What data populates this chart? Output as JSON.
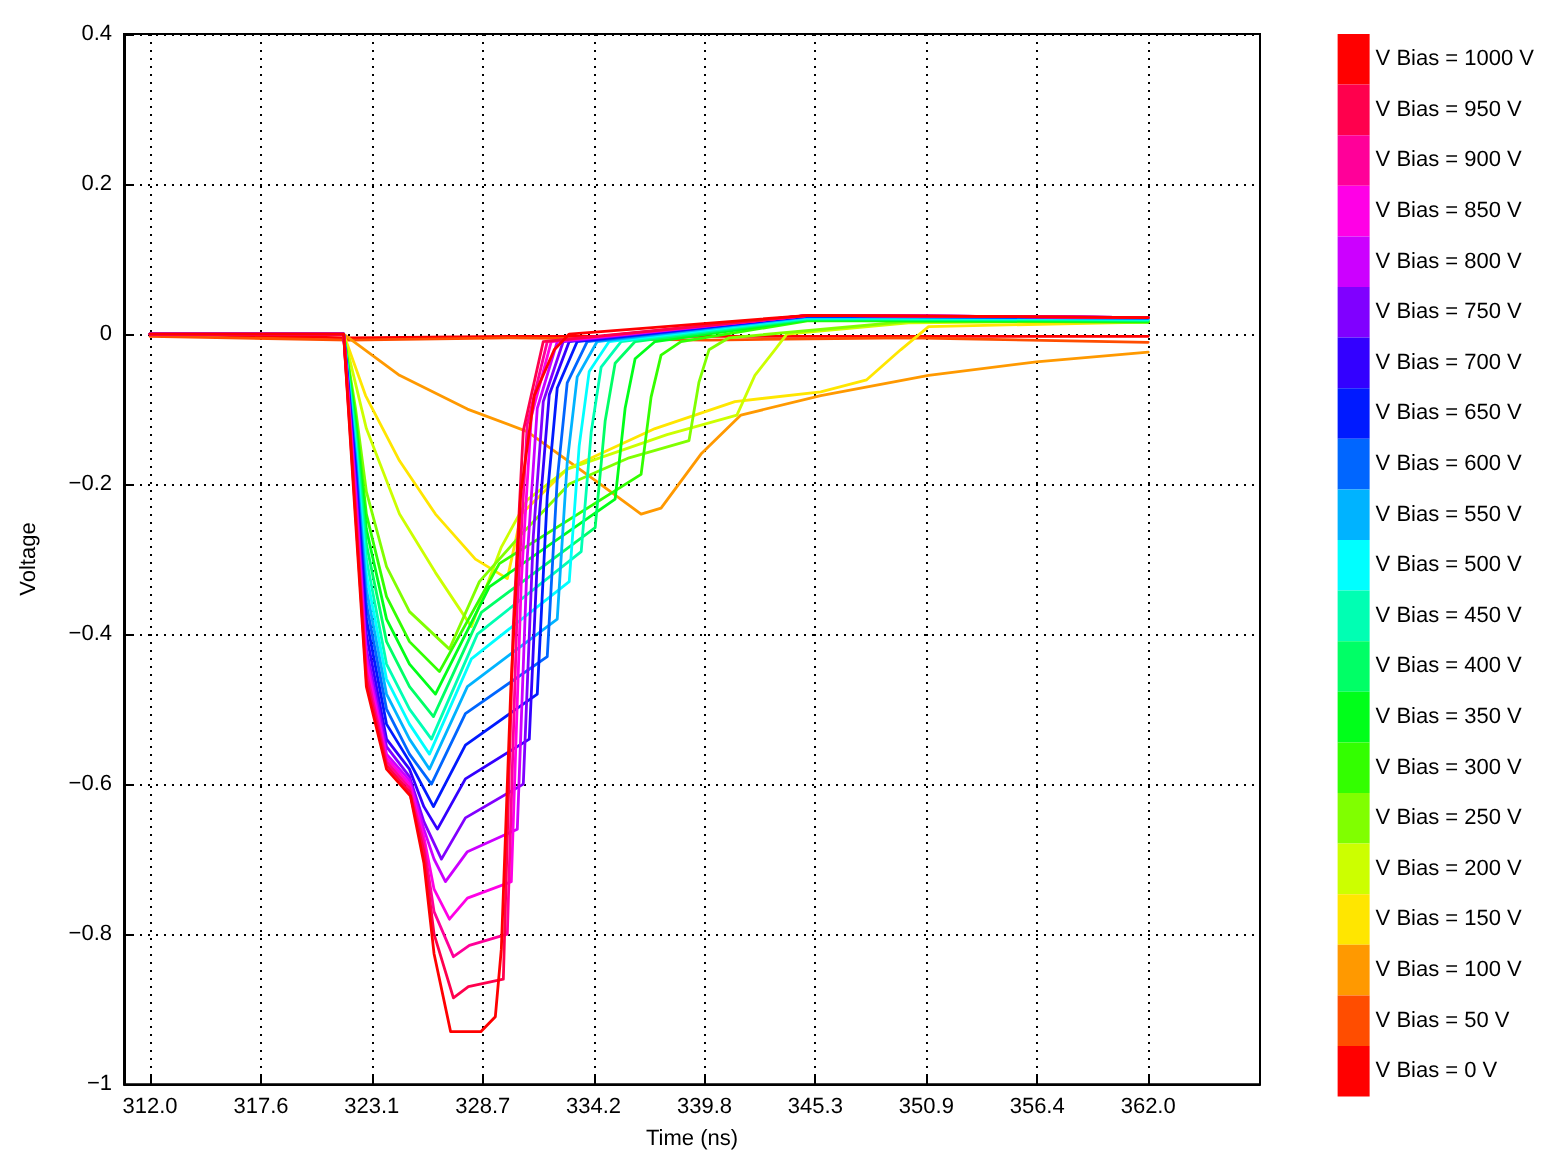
{
  "chart_data": {
    "type": "line",
    "xlabel": "Time (ns)",
    "ylabel": "Voltage",
    "xlim": [
      310.7,
      367.6
    ],
    "xticks": [
      {
        "value": 312,
        "label": "312.0"
      },
      {
        "value": 317.56,
        "label": "317.6"
      },
      {
        "value": 323.11,
        "label": "323.1"
      },
      {
        "value": 328.67,
        "label": "328.7"
      },
      {
        "value": 334.22,
        "label": "334.2"
      },
      {
        "value": 339.78,
        "label": "339.8"
      },
      {
        "value": 345.33,
        "label": "345.3"
      },
      {
        "value": 350.89,
        "label": "350.9"
      },
      {
        "value": 356.44,
        "label": "356.4"
      },
      {
        "value": 362,
        "label": "362.0"
      }
    ],
    "ylim": [
      -1,
      0.4
    ],
    "yticks": [
      {
        "value": -1,
        "label": "−1"
      },
      {
        "value": -0.8,
        "label": "−0.8"
      },
      {
        "value": -0.6,
        "label": "−0.6"
      },
      {
        "value": -0.4,
        "label": "−0.4"
      },
      {
        "value": -0.2,
        "label": "−0.2"
      },
      0,
      0.2,
      0.4
    ],
    "grid": true,
    "legend": "right",
    "marker": "none",
    "line_style": "solid",
    "series": [
      {
        "name": "V Bias = 0 V",
        "color": "#ff0000",
        "x": [
          312,
          322,
          330,
          340,
          350,
          362
        ],
        "values": [
          0,
          -0.005,
          -0.003,
          -0.003,
          -0.003,
          -0.003
        ]
      },
      {
        "name": "V Bias = 50 V",
        "color": "#ff4d00",
        "x": [
          312,
          322,
          330,
          340,
          350,
          362
        ],
        "values": [
          -0.003,
          -0.008,
          -0.005,
          -0.008,
          -0.005,
          -0.011
        ]
      },
      {
        "name": "V Bias = 100 V",
        "color": "#ff9900",
        "x": [
          312,
          321.7,
          324.5,
          327.9,
          330.9,
          334.3,
          336.6,
          337.6,
          339.6,
          341.6,
          345.6,
          351,
          356.4,
          362
        ],
        "values": [
          0,
          0,
          -0.055,
          -0.1,
          -0.13,
          -0.195,
          -0.24,
          -0.232,
          -0.16,
          -0.108,
          -0.082,
          -0.055,
          -0.037,
          -0.024
        ]
      },
      {
        "name": "V Bias = 150 V",
        "color": "#ffe600",
        "x": [
          312,
          321.7,
          322.8,
          324.5,
          326.3,
          328.3,
          329.9,
          330.6,
          332.9,
          337.3,
          341.3,
          345.6,
          347.9,
          349.6,
          351,
          362
        ],
        "values": [
          0,
          0,
          -0.082,
          -0.169,
          -0.24,
          -0.3,
          -0.326,
          -0.24,
          -0.18,
          -0.126,
          -0.09,
          -0.077,
          -0.061,
          -0.021,
          0.01,
          0.016
        ]
      },
      {
        "name": "V Bias = 200 V",
        "color": "#ccff00",
        "x": [
          312,
          321.7,
          322.84,
          324.5,
          326.3,
          328.1,
          329.6,
          330.9,
          332.9,
          337.9,
          341.4,
          342.3,
          343.3,
          343.9,
          350,
          362
        ],
        "values": [
          0,
          0,
          -0.126,
          -0.24,
          -0.318,
          -0.39,
          -0.284,
          -0.221,
          -0.18,
          -0.134,
          -0.108,
          -0.055,
          -0.021,
          0,
          0.015,
          0.018
        ]
      },
      {
        "name": "V Bias = 250 V",
        "color": "#80ff00",
        "x": [
          312,
          321.7,
          322.3,
          322.84,
          323.85,
          325.0,
          327.0,
          328.5,
          330.6,
          333,
          336,
          339.0,
          339.5,
          340.0,
          341.0,
          350,
          362
        ],
        "values": [
          0,
          0,
          -0.1,
          -0.21,
          -0.31,
          -0.37,
          -0.42,
          -0.33,
          -0.267,
          -0.2,
          -0.165,
          -0.142,
          -0.064,
          -0.021,
          -0.005,
          0.017,
          0.016
        ]
      },
      {
        "name": "V Bias = 300 V",
        "color": "#33ff00",
        "x": [
          312,
          321.7,
          322.3,
          322.84,
          323.85,
          325.0,
          326.5,
          329.5,
          336.6,
          337.1,
          337.6,
          338.6,
          345,
          362
        ],
        "values": [
          0,
          0,
          -0.11,
          -0.24,
          -0.35,
          -0.41,
          -0.45,
          -0.306,
          -0.187,
          -0.084,
          -0.028,
          -0.01,
          0.018,
          0.016
        ]
      },
      {
        "name": "V Bias = 350 V",
        "color": "#00ff1a",
        "x": [
          312,
          321.7,
          322.3,
          322.84,
          323.85,
          325.0,
          326.3,
          329.0,
          335.3,
          335.8,
          336.3,
          337.3,
          345,
          362
        ],
        "values": [
          0,
          0,
          -0.12,
          -0.26,
          -0.38,
          -0.44,
          -0.48,
          -0.337,
          -0.22,
          -0.099,
          -0.033,
          -0.01,
          0.019,
          0.017
        ]
      },
      {
        "name": "V Bias = 400 V",
        "color": "#00ff66",
        "x": [
          312,
          321.7,
          322.3,
          322.84,
          323.85,
          325.0,
          326.2,
          328.6,
          334.3,
          334.8,
          335.3,
          336.3,
          345,
          362
        ],
        "values": [
          0,
          0,
          -0.13,
          -0.28,
          -0.41,
          -0.47,
          -0.51,
          -0.371,
          -0.258,
          -0.116,
          -0.039,
          -0.01,
          0.02,
          0.018
        ]
      },
      {
        "name": "V Bias = 450 V",
        "color": "#00ffb3",
        "x": [
          312,
          321.7,
          322.3,
          322.84,
          323.85,
          325.0,
          326.1,
          328.4,
          333.6,
          334.1,
          334.6,
          335.6,
          345,
          362
        ],
        "values": [
          0,
          0,
          -0.14,
          -0.3,
          -0.44,
          -0.5,
          -0.54,
          -0.4,
          -0.29,
          -0.131,
          -0.044,
          -0.01,
          0.021,
          0.019
        ]
      },
      {
        "name": "V Bias = 500 V",
        "color": "#00ffff",
        "x": [
          312,
          321.7,
          322.3,
          322.84,
          323.85,
          325.0,
          326.0,
          328.1,
          333.0,
          333.5,
          334.0,
          335.0,
          345,
          362
        ],
        "values": [
          0,
          0,
          -0.15,
          -0.32,
          -0.46,
          -0.52,
          -0.56,
          -0.433,
          -0.33,
          -0.149,
          -0.05,
          -0.01,
          0.022,
          0.02
        ]
      },
      {
        "name": "V Bias = 550 V",
        "color": "#00b3ff",
        "x": [
          312,
          321.7,
          322.3,
          322.84,
          323.85,
          325.0,
          326.0,
          327.9,
          332.4,
          332.9,
          333.4,
          334.4,
          345,
          362
        ],
        "values": [
          0,
          0,
          -0.16,
          -0.34,
          -0.48,
          -0.54,
          -0.58,
          -0.47,
          -0.38,
          -0.171,
          -0.057,
          -0.01,
          0.023,
          0.021
        ]
      },
      {
        "name": "V Bias = 600 V",
        "color": "#0066ff",
        "x": [
          312,
          321.7,
          322.3,
          322.84,
          323.85,
          325.0,
          326.1,
          327.8,
          331.9,
          332.4,
          332.9,
          333.9,
          345,
          362
        ],
        "values": [
          0,
          0,
          -0.17,
          -0.36,
          -0.5,
          -0.56,
          -0.6,
          -0.506,
          -0.43,
          -0.194,
          -0.065,
          -0.01,
          0.024,
          0.021
        ]
      },
      {
        "name": "V Bias = 650 V",
        "color": "#001aff",
        "x": [
          312,
          321.7,
          322.3,
          322.84,
          323.85,
          325.0,
          326.2,
          327.8,
          331.4,
          331.9,
          332.4,
          333.4,
          345,
          362
        ],
        "values": [
          0,
          0,
          -0.18,
          -0.38,
          -0.52,
          -0.57,
          -0.63,
          -0.548,
          -0.48,
          -0.216,
          -0.072,
          -0.01,
          0.024,
          0.022
        ]
      },
      {
        "name": "V Bias = 700 V",
        "color": "#3300ff",
        "x": [
          312,
          321.7,
          322.3,
          322.84,
          323.85,
          325.0,
          325.72,
          326.4,
          327.8,
          331.0,
          331.5,
          332.0,
          333.0,
          345,
          362
        ],
        "values": [
          0,
          0,
          -0.19,
          -0.4,
          -0.54,
          -0.58,
          -0.63,
          -0.66,
          -0.593,
          -0.54,
          -0.243,
          -0.081,
          -0.01,
          0.025,
          0.022
        ]
      },
      {
        "name": "V Bias = 750 V",
        "color": "#8000ff",
        "x": [
          312,
          321.7,
          322.3,
          322.84,
          323.85,
          325.0,
          325.72,
          326.6,
          327.8,
          330.7,
          331.2,
          331.7,
          332.7,
          345,
          362
        ],
        "values": [
          0,
          0,
          -0.2,
          -0.42,
          -0.55,
          -0.59,
          -0.65,
          -0.7,
          -0.645,
          -0.6,
          -0.27,
          -0.09,
          -0.01,
          0.025,
          0.022
        ]
      },
      {
        "name": "V Bias = 800 V",
        "color": "#cc00ff",
        "x": [
          312,
          321.7,
          322.3,
          322.84,
          323.85,
          325.0,
          325.72,
          326.23,
          326.8,
          327.9,
          330.4,
          330.9,
          331.4,
          332.4,
          345,
          362
        ],
        "values": [
          0,
          0,
          -0.21,
          -0.43,
          -0.56,
          -0.595,
          -0.66,
          -0.7,
          -0.73,
          -0.69,
          -0.66,
          -0.297,
          -0.099,
          -0.01,
          0.025,
          0.022
        ]
      },
      {
        "name": "V Bias = 850 V",
        "color": "#ff00e6",
        "x": [
          312,
          321.7,
          322.3,
          322.84,
          323.85,
          325.0,
          325.72,
          326.23,
          327.0,
          327.9,
          330.1,
          330.6,
          331.1,
          332.1,
          345,
          362
        ],
        "values": [
          0,
          0,
          -0.22,
          -0.44,
          -0.565,
          -0.6,
          -0.67,
          -0.74,
          -0.78,
          -0.752,
          -0.73,
          -0.329,
          -0.11,
          -0.01,
          0.025,
          0.022
        ]
      },
      {
        "name": "V Bias = 900 V",
        "color": "#ff0099",
        "x": [
          312,
          321.7,
          322.3,
          322.84,
          323.85,
          325.0,
          325.72,
          326.23,
          327.2,
          328.0,
          329.9,
          330.4,
          330.9,
          331.9,
          345,
          362
        ],
        "values": [
          0,
          0,
          -0.23,
          -0.45,
          -0.57,
          -0.605,
          -0.68,
          -0.77,
          -0.83,
          -0.815,
          -0.8,
          -0.36,
          -0.12,
          -0.01,
          0.025,
          0.022
        ]
      },
      {
        "name": "V Bias = 950 V",
        "color": "#ff004d",
        "x": [
          312,
          321.7,
          322.3,
          322.84,
          323.85,
          325.0,
          325.72,
          326.23,
          327.2,
          327.95,
          329.7,
          330.2,
          330.7,
          331.7,
          345,
          362
        ],
        "values": [
          0,
          0,
          -0.24,
          -0.46,
          -0.575,
          -0.61,
          -0.69,
          -0.8,
          -0.885,
          -0.87,
          -0.86,
          -0.387,
          -0.129,
          -0.01,
          0.025,
          0.022
        ]
      },
      {
        "name": "V Bias = 1000 V",
        "color": "#ff0000",
        "x": [
          312,
          321.7,
          322.3,
          322.84,
          323.85,
          325.05,
          325.72,
          326.23,
          327.06,
          328.57,
          329.3,
          329.6,
          330.07,
          330.57,
          331.25,
          332.25,
          333,
          345,
          362
        ],
        "values": [
          0,
          0,
          -0.25,
          -0.47,
          -0.58,
          -0.616,
          -0.705,
          -0.826,
          -0.93,
          -0.93,
          -0.91,
          -0.82,
          -0.476,
          -0.213,
          -0.082,
          -0.021,
          0,
          0.025,
          0.022
        ]
      }
    ]
  }
}
